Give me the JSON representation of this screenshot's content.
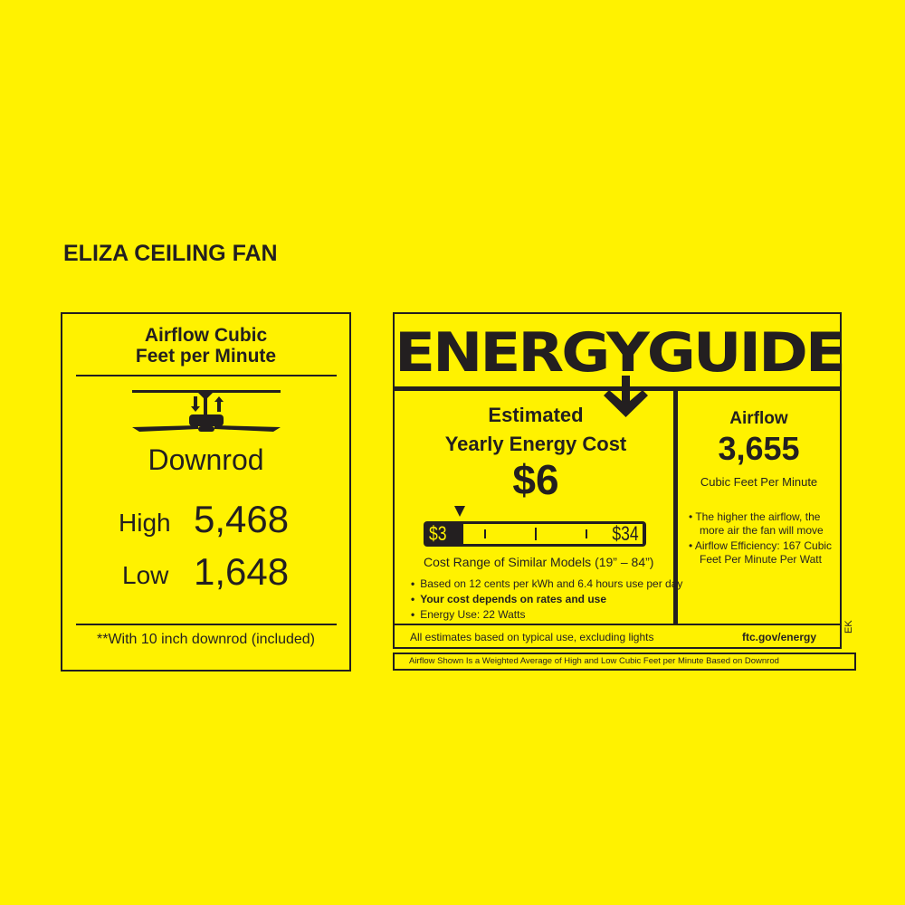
{
  "title": "ELIZA CEILING FAN",
  "airflow_panel": {
    "heading_line1": "Airflow Cubic",
    "heading_line2": "Feet per Minute",
    "icon": "ceiling-fan-downrod-icon",
    "mount": "Downrod",
    "high_label": "High",
    "high_value": "5,468",
    "low_label": "Low",
    "low_value": "1,648",
    "footnote": "**With 10 inch downrod (included)"
  },
  "energy_guide": {
    "logo": "ENERGYGUIDE",
    "cost_heading_line1": "Estimated",
    "cost_heading_line2": "Yearly Energy Cost",
    "cost_value": "$6",
    "range_min": "$3",
    "range_max": "$34",
    "range_marker_value": 6,
    "range_label": "Cost Range of Similar Models (19” – 84”)",
    "bullets": [
      "Based on 12 cents per kWh and 6.4 hours use per day",
      "Your cost depends on rates and use",
      "Energy Use: 22 Watts"
    ],
    "airflow_heading": "Airflow",
    "airflow_value": "3,655",
    "airflow_unit": "Cubic Feet Per Minute",
    "airflow_bullets": [
      "The higher the airflow, the more air the fan will move",
      "Airflow Efficiency: 167 Cubic Feet Per Minute Per Watt"
    ],
    "footer_left": "All estimates based on typical use, excluding lights",
    "footer_right": "ftc.gov/energy",
    "side_code": "EK",
    "note": "Airflow Shown Is a Weighted Average of High and Low Cubic Feet per Minute Based on Downrod"
  },
  "colors": {
    "background": "#fff200",
    "ink": "#231f20"
  }
}
